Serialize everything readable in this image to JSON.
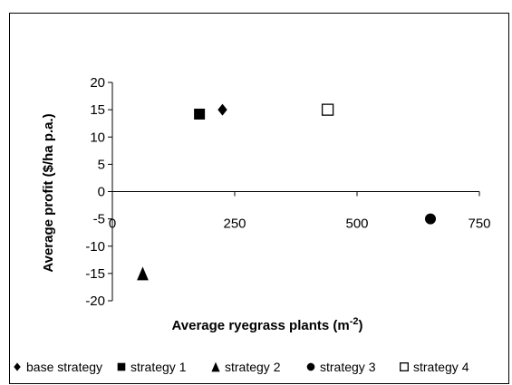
{
  "chart_data": {
    "type": "scatter",
    "title": "",
    "xlabel": "Average ryegrass plants (m",
    "xlabel_sup": "-2",
    "xlabel_end": ")",
    "ylabel": "Average  profit ($/ha p.a.)",
    "xlim": [
      0,
      750
    ],
    "ylim": [
      -20,
      20
    ],
    "xticks": [
      "0",
      "250",
      "500",
      "750"
    ],
    "xtick_values": [
      0,
      250,
      500,
      750
    ],
    "yticks": [
      "20",
      "15",
      "10",
      "5",
      "0",
      "-5",
      "-10",
      "-15",
      "-20"
    ],
    "ytick_values": [
      20,
      15,
      10,
      5,
      0,
      -5,
      -10,
      -15,
      -20
    ],
    "grid": false,
    "legend_position": "bottom",
    "series": [
      {
        "name": "base strategy",
        "marker": "diamond",
        "color": "#000000",
        "points": [
          {
            "x": 225,
            "y": 15
          }
        ]
      },
      {
        "name": "strategy 1",
        "marker": "square",
        "color": "#000000",
        "points": [
          {
            "x": 178,
            "y": 14.2
          }
        ]
      },
      {
        "name": "strategy 2",
        "marker": "triangle",
        "color": "#000000",
        "points": [
          {
            "x": 62,
            "y": -15
          }
        ]
      },
      {
        "name": "strategy 3",
        "marker": "circle",
        "color": "#000000",
        "points": [
          {
            "x": 650,
            "y": -5
          }
        ]
      },
      {
        "name": "strategy 4",
        "marker": "open-square",
        "color": "#000000",
        "points": [
          {
            "x": 440,
            "y": 15
          }
        ]
      }
    ]
  }
}
